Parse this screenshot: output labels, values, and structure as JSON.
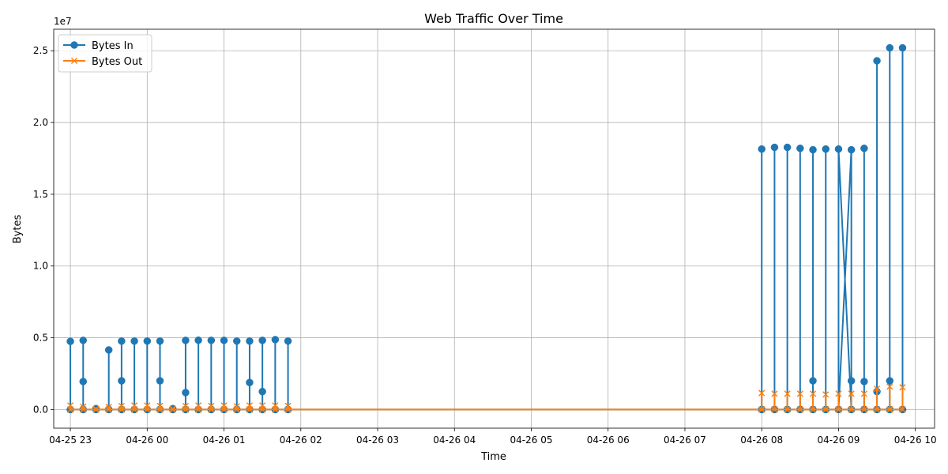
{
  "chart_data": {
    "type": "line",
    "title": "Web Traffic Over Time",
    "xlabel": "Time",
    "ylabel": "Bytes",
    "y_offset_text": "1e7",
    "ylim": [
      -1300000,
      26500000
    ],
    "xlim": [
      "2025-04-25 22:47",
      "2025-04-26 10:15"
    ],
    "grid": true,
    "legend_position": "top-left",
    "x_ticks": [
      {
        "t": "2025-04-25 23:00",
        "label": "04-25 23"
      },
      {
        "t": "2025-04-26 00:00",
        "label": "04-26 00"
      },
      {
        "t": "2025-04-26 01:00",
        "label": "04-26 01"
      },
      {
        "t": "2025-04-26 02:00",
        "label": "04-26 02"
      },
      {
        "t": "2025-04-26 03:00",
        "label": "04-26 03"
      },
      {
        "t": "2025-04-26 04:00",
        "label": "04-26 04"
      },
      {
        "t": "2025-04-26 05:00",
        "label": "04-26 05"
      },
      {
        "t": "2025-04-26 06:00",
        "label": "04-26 06"
      },
      {
        "t": "2025-04-26 07:00",
        "label": "04-26 07"
      },
      {
        "t": "2025-04-26 08:00",
        "label": "04-26 08"
      },
      {
        "t": "2025-04-26 09:00",
        "label": "04-26 09"
      },
      {
        "t": "2025-04-26 10:00",
        "label": "04-26 10"
      }
    ],
    "y_ticks": [
      {
        "v": 0,
        "label": "0.0"
      },
      {
        "v": 5000000,
        "label": "0.5"
      },
      {
        "v": 10000000,
        "label": "1.0"
      },
      {
        "v": 15000000,
        "label": "1.5"
      },
      {
        "v": 20000000,
        "label": "2.0"
      },
      {
        "v": 25000000,
        "label": "2.5"
      }
    ],
    "series": [
      {
        "name": "Bytes In",
        "color": "#1f77b4",
        "marker": "circle",
        "points": [
          [
            "2025-04-25 23:00",
            0
          ],
          [
            "2025-04-25 23:00",
            4750000
          ],
          [
            "2025-04-25 23:00",
            0
          ],
          [
            "2025-04-25 23:10",
            0
          ],
          [
            "2025-04-25 23:10",
            4820000
          ],
          [
            "2025-04-25 23:10",
            1950000
          ],
          [
            "2025-04-25 23:10",
            0
          ],
          [
            "2025-04-25 23:20",
            0
          ],
          [
            "2025-04-25 23:20",
            60000
          ],
          [
            "2025-04-25 23:20",
            0
          ],
          [
            "2025-04-25 23:30",
            0
          ],
          [
            "2025-04-25 23:30",
            4150000
          ],
          [
            "2025-04-25 23:30",
            0
          ],
          [
            "2025-04-25 23:40",
            0
          ],
          [
            "2025-04-25 23:40",
            4770000
          ],
          [
            "2025-04-25 23:40",
            2000000
          ],
          [
            "2025-04-25 23:40",
            0
          ],
          [
            "2025-04-25 23:50",
            0
          ],
          [
            "2025-04-25 23:50",
            4770000
          ],
          [
            "2025-04-25 23:50",
            0
          ],
          [
            "2025-04-26 00:00",
            0
          ],
          [
            "2025-04-26 00:00",
            4770000
          ],
          [
            "2025-04-26 00:00",
            0
          ],
          [
            "2025-04-26 00:10",
            0
          ],
          [
            "2025-04-26 00:10",
            4770000
          ],
          [
            "2025-04-26 00:10",
            2000000
          ],
          [
            "2025-04-26 00:10",
            0
          ],
          [
            "2025-04-26 00:20",
            0
          ],
          [
            "2025-04-26 00:20",
            60000
          ],
          [
            "2025-04-26 00:20",
            0
          ],
          [
            "2025-04-26 00:30",
            0
          ],
          [
            "2025-04-26 00:30",
            4820000
          ],
          [
            "2025-04-26 00:30",
            1180000
          ],
          [
            "2025-04-26 00:30",
            0
          ],
          [
            "2025-04-26 00:40",
            0
          ],
          [
            "2025-04-26 00:40",
            4830000
          ],
          [
            "2025-04-26 00:40",
            0
          ],
          [
            "2025-04-26 00:50",
            0
          ],
          [
            "2025-04-26 00:50",
            4820000
          ],
          [
            "2025-04-26 00:50",
            0
          ],
          [
            "2025-04-26 01:00",
            0
          ],
          [
            "2025-04-26 01:00",
            4820000
          ],
          [
            "2025-04-26 01:00",
            0
          ],
          [
            "2025-04-26 01:10",
            0
          ],
          [
            "2025-04-26 01:10",
            4770000
          ],
          [
            "2025-04-26 01:10",
            0
          ],
          [
            "2025-04-26 01:20",
            0
          ],
          [
            "2025-04-26 01:20",
            4770000
          ],
          [
            "2025-04-26 01:20",
            1880000
          ],
          [
            "2025-04-26 01:20",
            0
          ],
          [
            "2025-04-26 01:30",
            0
          ],
          [
            "2025-04-26 01:30",
            4820000
          ],
          [
            "2025-04-26 01:30",
            1250000
          ],
          [
            "2025-04-26 01:30",
            0
          ],
          [
            "2025-04-26 01:40",
            0
          ],
          [
            "2025-04-26 01:40",
            4870000
          ],
          [
            "2025-04-26 01:40",
            0
          ],
          [
            "2025-04-26 01:50",
            0
          ],
          [
            "2025-04-26 01:50",
            4770000
          ],
          [
            "2025-04-26 01:50",
            0
          ],
          [
            "2025-04-26 08:00",
            0
          ],
          [
            "2025-04-26 08:00",
            18150000
          ],
          [
            "2025-04-26 08:00",
            0
          ],
          [
            "2025-04-26 08:10",
            0
          ],
          [
            "2025-04-26 08:10",
            18270000
          ],
          [
            "2025-04-26 08:10",
            0
          ],
          [
            "2025-04-26 08:20",
            0
          ],
          [
            "2025-04-26 08:20",
            18270000
          ],
          [
            "2025-04-26 08:20",
            0
          ],
          [
            "2025-04-26 08:30",
            0
          ],
          [
            "2025-04-26 08:30",
            18200000
          ],
          [
            "2025-04-26 08:30",
            0
          ],
          [
            "2025-04-26 08:40",
            0
          ],
          [
            "2025-04-26 08:40",
            18100000
          ],
          [
            "2025-04-26 08:40",
            2000000
          ],
          [
            "2025-04-26 08:40",
            0
          ],
          [
            "2025-04-26 08:50",
            0
          ],
          [
            "2025-04-26 08:50",
            18150000
          ],
          [
            "2025-04-26 08:50",
            0
          ],
          [
            "2025-04-26 09:00",
            0
          ],
          [
            "2025-04-26 09:00",
            18150000
          ],
          [
            "2025-04-26 09:10",
            0
          ],
          [
            "2025-04-26 09:00",
            0
          ],
          [
            "2025-04-26 09:10",
            18100000
          ],
          [
            "2025-04-26 09:10",
            2000000
          ],
          [
            "2025-04-26 09:10",
            0
          ],
          [
            "2025-04-26 09:20",
            0
          ],
          [
            "2025-04-26 09:20",
            18200000
          ],
          [
            "2025-04-26 09:20",
            1950000
          ],
          [
            "2025-04-26 09:20",
            0
          ],
          [
            "2025-04-26 09:30",
            0
          ],
          [
            "2025-04-26 09:30",
            24300000
          ],
          [
            "2025-04-26 09:30",
            1250000
          ],
          [
            "2025-04-26 09:30",
            0
          ],
          [
            "2025-04-26 09:40",
            0
          ],
          [
            "2025-04-26 09:40",
            25200000
          ],
          [
            "2025-04-26 09:40",
            2000000
          ],
          [
            "2025-04-26 09:40",
            0
          ],
          [
            "2025-04-26 09:50",
            0
          ],
          [
            "2025-04-26 09:50",
            25200000
          ],
          [
            "2025-04-26 09:50",
            0
          ]
        ]
      },
      {
        "name": "Bytes Out",
        "color": "#ff7f0e",
        "marker": "x",
        "points": [
          [
            "2025-04-25 23:00",
            0
          ],
          [
            "2025-04-25 23:00",
            280000
          ],
          [
            "2025-04-25 23:00",
            0
          ],
          [
            "2025-04-25 23:10",
            0
          ],
          [
            "2025-04-25 23:10",
            200000
          ],
          [
            "2025-04-25 23:10",
            0
          ],
          [
            "2025-04-25 23:20",
            0
          ],
          [
            "2025-04-25 23:20",
            50000
          ],
          [
            "2025-04-25 23:20",
            0
          ],
          [
            "2025-04-25 23:30",
            0
          ],
          [
            "2025-04-25 23:30",
            180000
          ],
          [
            "2025-04-25 23:30",
            0
          ],
          [
            "2025-04-25 23:40",
            0
          ],
          [
            "2025-04-25 23:40",
            250000
          ],
          [
            "2025-04-25 23:40",
            0
          ],
          [
            "2025-04-25 23:50",
            0
          ],
          [
            "2025-04-25 23:50",
            280000
          ],
          [
            "2025-04-25 23:50",
            0
          ],
          [
            "2025-04-26 00:00",
            0
          ],
          [
            "2025-04-26 00:00",
            280000
          ],
          [
            "2025-04-26 00:00",
            0
          ],
          [
            "2025-04-26 00:10",
            0
          ],
          [
            "2025-04-26 00:10",
            250000
          ],
          [
            "2025-04-26 00:10",
            0
          ],
          [
            "2025-04-26 00:20",
            0
          ],
          [
            "2025-04-26 00:20",
            50000
          ],
          [
            "2025-04-26 00:20",
            0
          ],
          [
            "2025-04-26 00:30",
            0
          ],
          [
            "2025-04-26 00:30",
            250000
          ],
          [
            "2025-04-26 00:30",
            0
          ],
          [
            "2025-04-26 00:40",
            0
          ],
          [
            "2025-04-26 00:40",
            280000
          ],
          [
            "2025-04-26 00:40",
            0
          ],
          [
            "2025-04-26 00:50",
            0
          ],
          [
            "2025-04-26 00:50",
            250000
          ],
          [
            "2025-04-26 00:50",
            0
          ],
          [
            "2025-04-26 01:00",
            0
          ],
          [
            "2025-04-26 01:00",
            280000
          ],
          [
            "2025-04-26 01:00",
            0
          ],
          [
            "2025-04-26 01:10",
            0
          ],
          [
            "2025-04-26 01:10",
            220000
          ],
          [
            "2025-04-26 01:10",
            0
          ],
          [
            "2025-04-26 01:20",
            0
          ],
          [
            "2025-04-26 01:20",
            280000
          ],
          [
            "2025-04-26 01:20",
            0
          ],
          [
            "2025-04-26 01:30",
            0
          ],
          [
            "2025-04-26 01:30",
            280000
          ],
          [
            "2025-04-26 01:30",
            0
          ],
          [
            "2025-04-26 01:40",
            0
          ],
          [
            "2025-04-26 01:40",
            280000
          ],
          [
            "2025-04-26 01:40",
            0
          ],
          [
            "2025-04-26 01:50",
            0
          ],
          [
            "2025-04-26 01:50",
            250000
          ],
          [
            "2025-04-26 01:50",
            0
          ],
          [
            "2025-04-26 08:00",
            0
          ],
          [
            "2025-04-26 08:00",
            1150000
          ],
          [
            "2025-04-26 08:00",
            0
          ],
          [
            "2025-04-26 08:10",
            0
          ],
          [
            "2025-04-26 08:10",
            1100000
          ],
          [
            "2025-04-26 08:10",
            0
          ],
          [
            "2025-04-26 08:20",
            0
          ],
          [
            "2025-04-26 08:20",
            1100000
          ],
          [
            "2025-04-26 08:20",
            0
          ],
          [
            "2025-04-26 08:30",
            0
          ],
          [
            "2025-04-26 08:30",
            1100000
          ],
          [
            "2025-04-26 08:30",
            0
          ],
          [
            "2025-04-26 08:40",
            0
          ],
          [
            "2025-04-26 08:40",
            1100000
          ],
          [
            "2025-04-26 08:40",
            0
          ],
          [
            "2025-04-26 08:50",
            0
          ],
          [
            "2025-04-26 08:50",
            1050000
          ],
          [
            "2025-04-26 08:50",
            0
          ],
          [
            "2025-04-26 09:00",
            0
          ],
          [
            "2025-04-26 09:00",
            1100000
          ],
          [
            "2025-04-26 09:00",
            0
          ],
          [
            "2025-04-26 09:10",
            0
          ],
          [
            "2025-04-26 09:10",
            1100000
          ],
          [
            "2025-04-26 09:10",
            0
          ],
          [
            "2025-04-26 09:20",
            0
          ],
          [
            "2025-04-26 09:20",
            1100000
          ],
          [
            "2025-04-26 09:20",
            0
          ],
          [
            "2025-04-26 09:30",
            0
          ],
          [
            "2025-04-26 09:30",
            1450000
          ],
          [
            "2025-04-26 09:30",
            0
          ],
          [
            "2025-04-26 09:40",
            0
          ],
          [
            "2025-04-26 09:40",
            1600000
          ],
          [
            "2025-04-26 09:40",
            0
          ],
          [
            "2025-04-26 09:50",
            0
          ],
          [
            "2025-04-26 09:50",
            1550000
          ],
          [
            "2025-04-26 09:50",
            0
          ]
        ]
      }
    ]
  }
}
